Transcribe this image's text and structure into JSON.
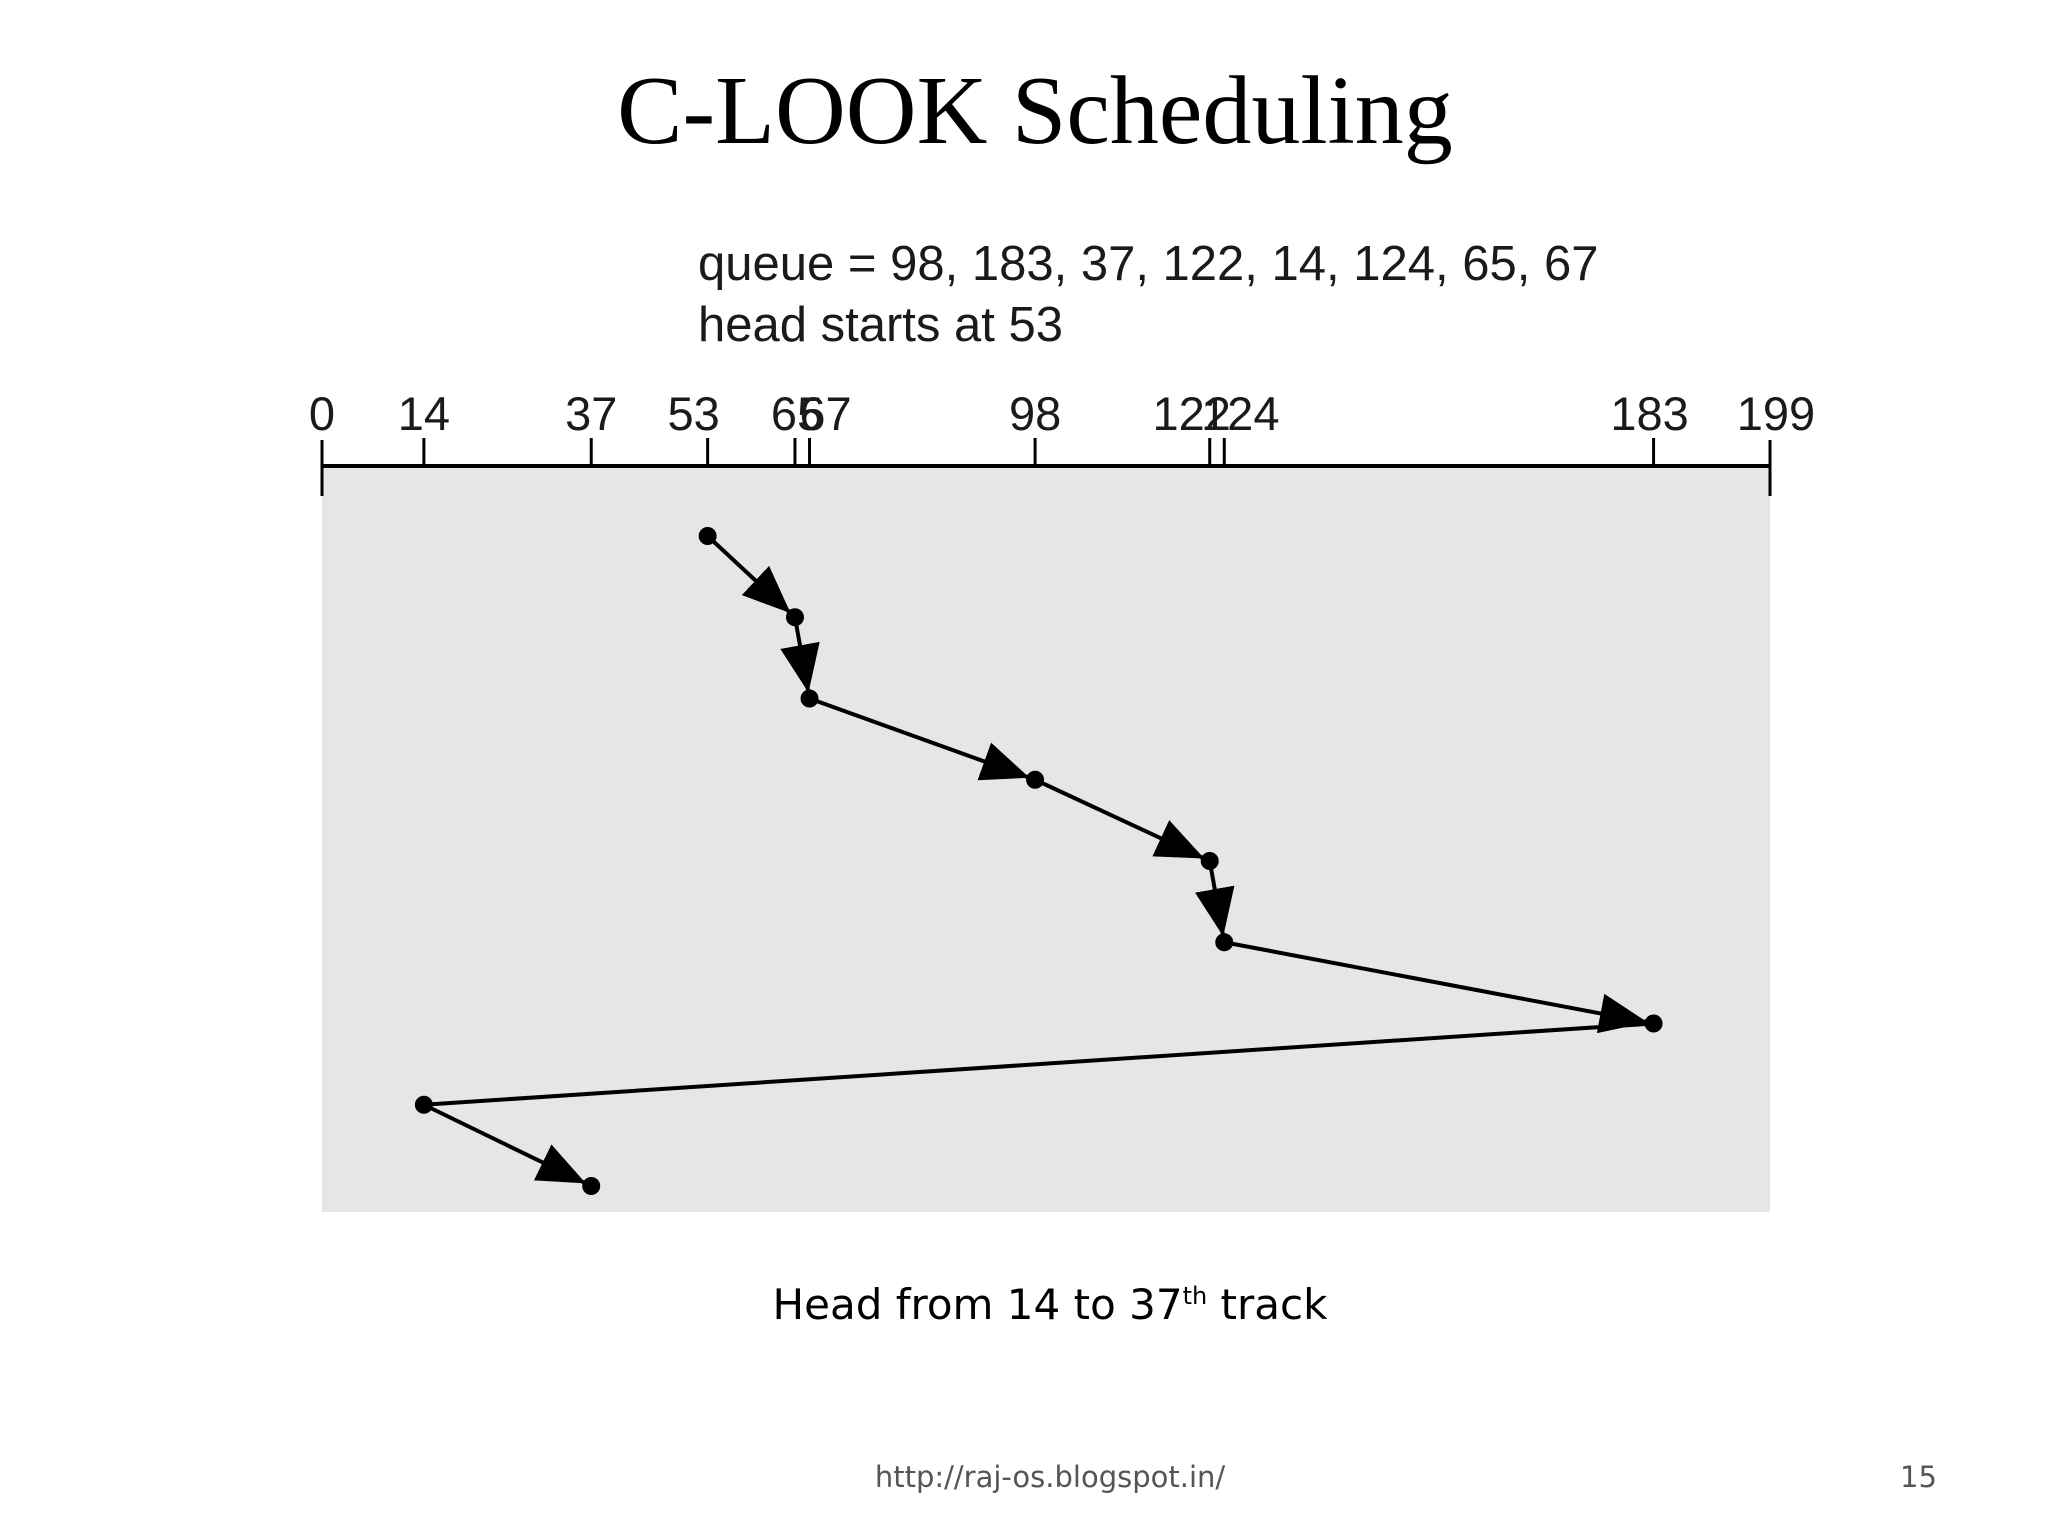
{
  "slide": {
    "title": "C-LOOK Scheduling",
    "caption_main": "Head from 14 to 37",
    "caption_sup": "th",
    "caption_end": " track",
    "footer_url": "http://raj-os.blogspot.in/",
    "page_number": "15"
  },
  "diagram": {
    "queue_text": "queue = 98, 183, 37, 122, 14, 124, 65, 67",
    "head_text": "head starts at 53",
    "axis_min": 0,
    "axis_max": 199,
    "ticks": [
      0,
      14,
      37,
      53,
      65,
      67,
      98,
      122,
      124,
      183,
      199
    ],
    "tick_labels": [
      "0",
      "14",
      "37",
      "53",
      "65",
      "67",
      "98",
      "122",
      "124",
      "183",
      "199"
    ],
    "path": [
      53,
      65,
      67,
      98,
      122,
      124,
      183,
      14,
      37
    ],
    "jump_segments": [
      6
    ],
    "colors": {
      "panel_background": "#e6e6e6",
      "stroke": "#000000"
    }
  }
}
